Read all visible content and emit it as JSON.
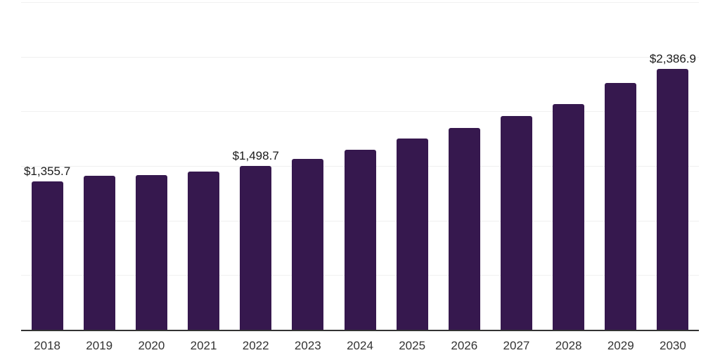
{
  "chart_data": {
    "type": "bar",
    "categories": [
      "2018",
      "2019",
      "2020",
      "2021",
      "2022",
      "2023",
      "2024",
      "2025",
      "2026",
      "2027",
      "2028",
      "2029",
      "2030"
    ],
    "values": [
      1355.7,
      1409,
      1414,
      1448,
      1498.7,
      1566,
      1645,
      1752,
      1845,
      1956,
      2068,
      2261,
      2386.9
    ],
    "value_labels": [
      {
        "index": 0,
        "text": "$1,355.7"
      },
      {
        "index": 4,
        "text": "$1,498.7"
      },
      {
        "index": 12,
        "text": "$2,386.9"
      }
    ],
    "title": "",
    "xlabel": "",
    "ylabel": "",
    "ylim": [
      0,
      3000
    ],
    "gridline_step": 500,
    "grid": true,
    "legend": false,
    "colors": {
      "bar": "#36184e",
      "gridline": "#f0f0f0",
      "axis_line": "#333333",
      "tick_text": "#333333",
      "value_text": "#1a1a1a"
    }
  }
}
